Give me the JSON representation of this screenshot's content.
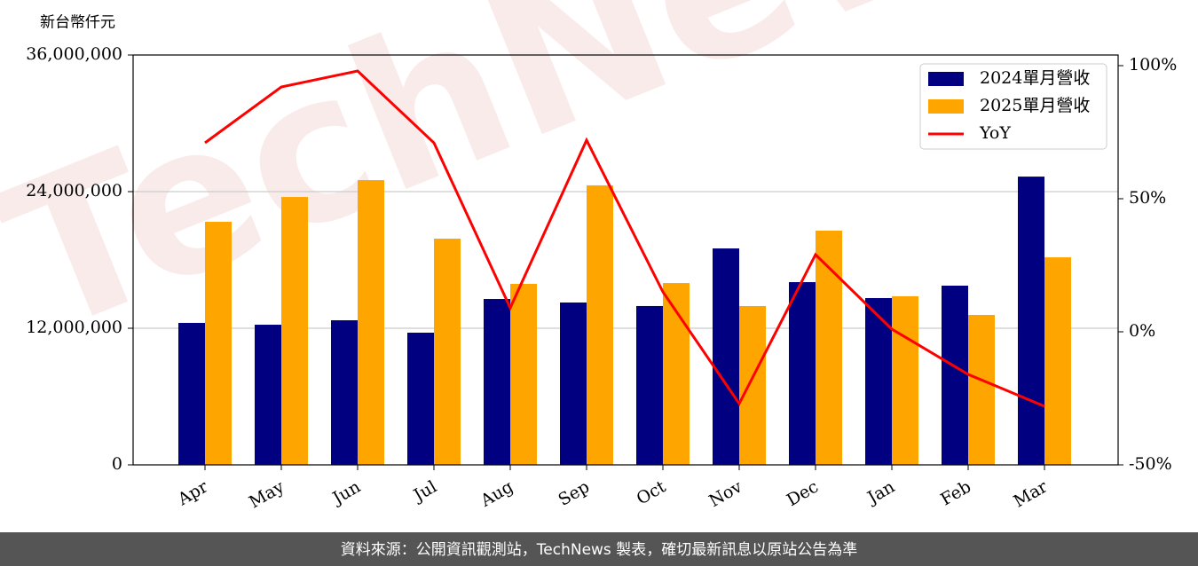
{
  "chart_data": {
    "type": "bar_line",
    "y_label": "新台幣仟元",
    "watermark": "TechNews",
    "footer": "資料來源：公開資訊觀測站，TechNews 製表，確切最新訊息以原站公告為準",
    "categories": [
      "Apr",
      "May",
      "Jun",
      "Jul",
      "Aug",
      "Sep",
      "Oct",
      "Nov",
      "Dec",
      "Jan",
      "Feb",
      "Mar"
    ],
    "series": [
      {
        "name": "2024單月營收",
        "color": "#000080",
        "type": "bar",
        "values": [
          12470000,
          12310000,
          12700000,
          11610000,
          14570000,
          14260000,
          13950000,
          19010000,
          16050000,
          14650000,
          15740000,
          25320000
        ]
      },
      {
        "name": "2025單月營收",
        "color": "#ffa500",
        "type": "bar",
        "values": [
          21350000,
          23530000,
          25010000,
          19870000,
          15900000,
          24550000,
          15970000,
          13950000,
          20570000,
          14810000,
          13170000,
          18230000
        ]
      },
      {
        "name": "YoY",
        "color": "#ff0000",
        "type": "line",
        "axis": "y2",
        "values": [
          71,
          92,
          98,
          71,
          9,
          72,
          15,
          -27,
          29,
          1,
          -16,
          -28
        ]
      }
    ],
    "ylim": [
      0,
      36000000
    ],
    "yticks": [
      0,
      {
        "value": 12000000,
        "label": "12,000,000"
      },
      {
        "value": 24000000,
        "label": "24,000,000"
      },
      {
        "value": 36000000,
        "label": "36,000,000"
      }
    ],
    "y2lim": [
      -50,
      104
    ],
    "y2ticks": [
      {
        "value": -50,
        "label": "-50%"
      },
      {
        "value": 0,
        "label": "0%"
      },
      {
        "value": 50,
        "label": "50%"
      },
      {
        "value": 100,
        "label": "100%"
      }
    ],
    "grid": true,
    "legend": "upper right"
  }
}
